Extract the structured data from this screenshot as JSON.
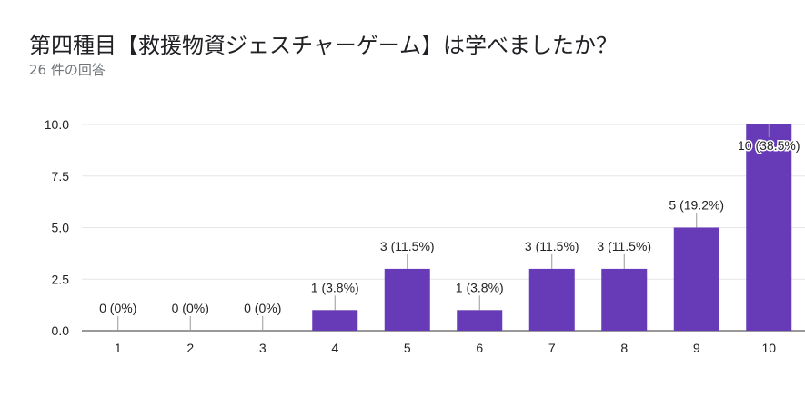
{
  "title": "第四種目【救援物資ジェスチャーゲーム】は学べましたか？",
  "subtitle": "26 件の回答",
  "chart_data": {
    "type": "bar",
    "categories": [
      "1",
      "2",
      "3",
      "4",
      "5",
      "6",
      "7",
      "8",
      "9",
      "10"
    ],
    "values": [
      0,
      0,
      0,
      1,
      3,
      1,
      3,
      3,
      5,
      10
    ],
    "data_labels": [
      "0 (0%)",
      "0 (0%)",
      "0 (0%)",
      "1 (3.8%)",
      "3 (11.5%)",
      "1 (3.8%)",
      "3 (11.5%)",
      "3 (11.5%)",
      "5 (19.2%)",
      "10 (38.5%)"
    ],
    "yticks": [
      "0.0",
      "2.5",
      "5.0",
      "7.5",
      "10.0"
    ],
    "ylim": [
      0,
      10
    ],
    "xlabel": "",
    "ylabel": "",
    "grid": true,
    "bar_color": "#673ab7"
  }
}
